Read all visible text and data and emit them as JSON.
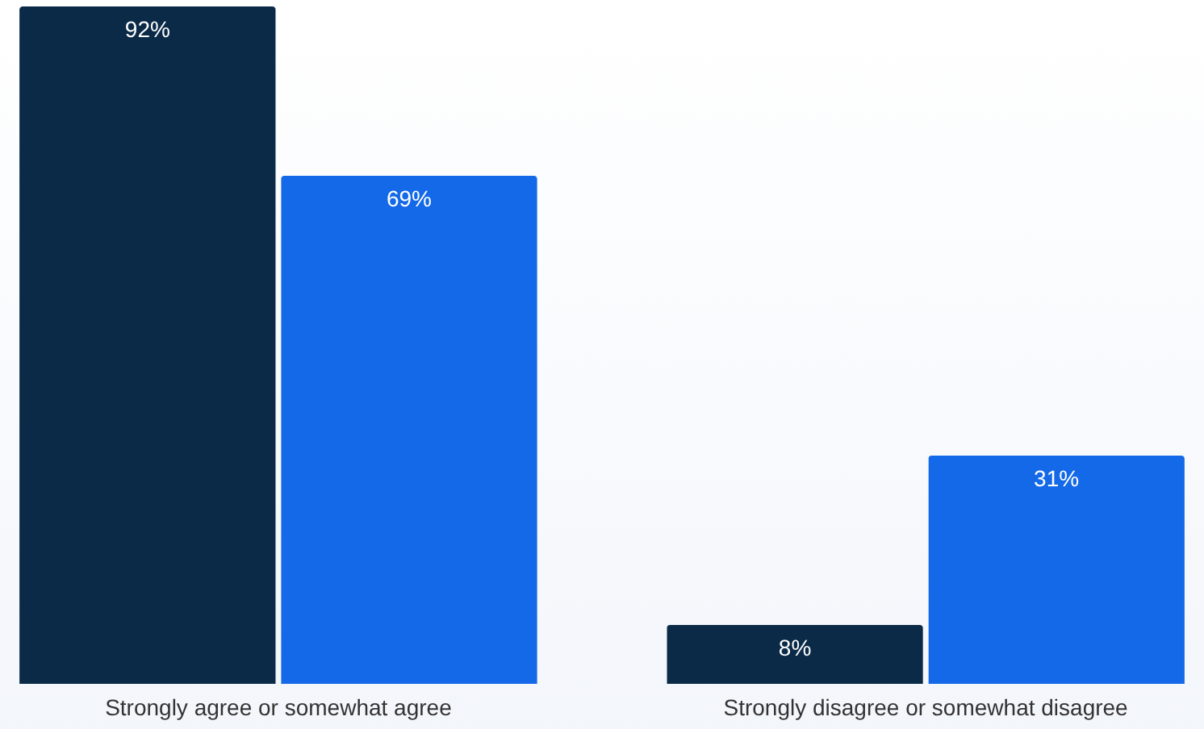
{
  "chart_data": {
    "type": "bar",
    "categories": [
      "Strongly agree or somewhat agree",
      "Strongly disagree or somewhat disagree"
    ],
    "series": [
      {
        "color": "#0b2a47",
        "values": [
          92,
          8
        ],
        "value_labels": [
          "92%",
          "8%"
        ]
      },
      {
        "color": "#1469e8",
        "values": [
          69,
          31
        ],
        "value_labels": [
          "69%",
          "31%"
        ]
      }
    ]
  }
}
